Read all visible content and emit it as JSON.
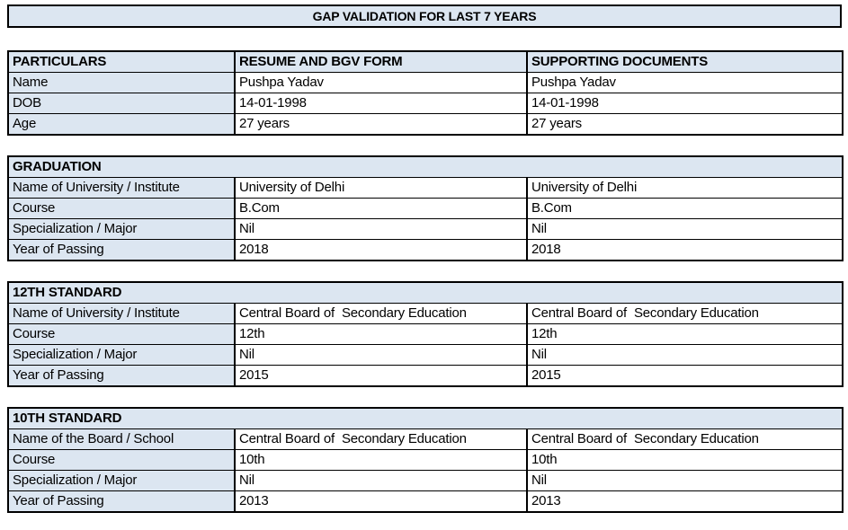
{
  "title": "GAP VALIDATION FOR LAST 7 YEARS",
  "colors": {
    "header_fill": "#dce6f1",
    "border": "#000000",
    "background": "#ffffff",
    "text": "#000000"
  },
  "particulars_table": {
    "headers": [
      "PARTICULARS",
      "RESUME AND BGV FORM",
      "SUPPORTING DOCUMENTS"
    ],
    "rows": [
      {
        "label": "Name",
        "resume": "Pushpa Yadav",
        "supporting": "Pushpa Yadav"
      },
      {
        "label": "DOB",
        "resume": "14-01-1998",
        "supporting": "14-01-1998"
      },
      {
        "label": "Age",
        "resume": "27 years",
        "supporting": "27 years"
      }
    ]
  },
  "sections": [
    {
      "title": "GRADUATION",
      "rows": [
        {
          "label": "Name of University / Institute",
          "resume": "University of Delhi",
          "supporting": "University of Delhi"
        },
        {
          "label": "Course",
          "resume": "B.Com",
          "supporting": "B.Com"
        },
        {
          "label": "Specialization / Major",
          "resume": "Nil",
          "supporting": "Nil"
        },
        {
          "label": "Year of Passing",
          "resume": "2018",
          "supporting": "2018"
        }
      ]
    },
    {
      "title": "12TH STANDARD",
      "rows": [
        {
          "label": "Name of University / Institute",
          "resume": "Central Board of  Secondary Education",
          "supporting": "Central Board of  Secondary Education"
        },
        {
          "label": "Course",
          "resume": "12th",
          "supporting": "12th"
        },
        {
          "label": "Specialization / Major",
          "resume": "Nil",
          "supporting": "Nil"
        },
        {
          "label": "Year of Passing",
          "resume": "2015",
          "supporting": "2015"
        }
      ]
    },
    {
      "title": "10TH STANDARD",
      "rows": [
        {
          "label": "Name of the Board / School",
          "resume": "Central Board of  Secondary Education",
          "supporting": "Central Board of  Secondary Education"
        },
        {
          "label": "Course",
          "resume": "10th",
          "supporting": "10th"
        },
        {
          "label": "Specialization / Major",
          "resume": "Nil",
          "supporting": "Nil"
        },
        {
          "label": "Year of Passing",
          "resume": "2013",
          "supporting": "2013"
        }
      ]
    }
  ]
}
